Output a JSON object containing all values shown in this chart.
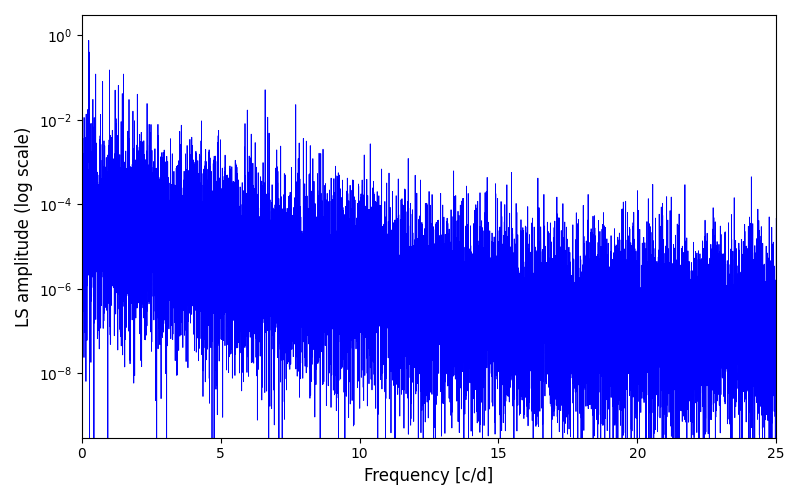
{
  "xlabel": "Frequency [c/d]",
  "ylabel": "LS amplitude (log scale)",
  "line_color": "#0000ff",
  "line_width": 0.6,
  "xlim": [
    0,
    25
  ],
  "ylim": [
    3e-10,
    3
  ],
  "figsize": [
    8.0,
    5.0
  ],
  "dpi": 100,
  "freq_max": 25.0,
  "n_points": 6000,
  "seed": 7
}
